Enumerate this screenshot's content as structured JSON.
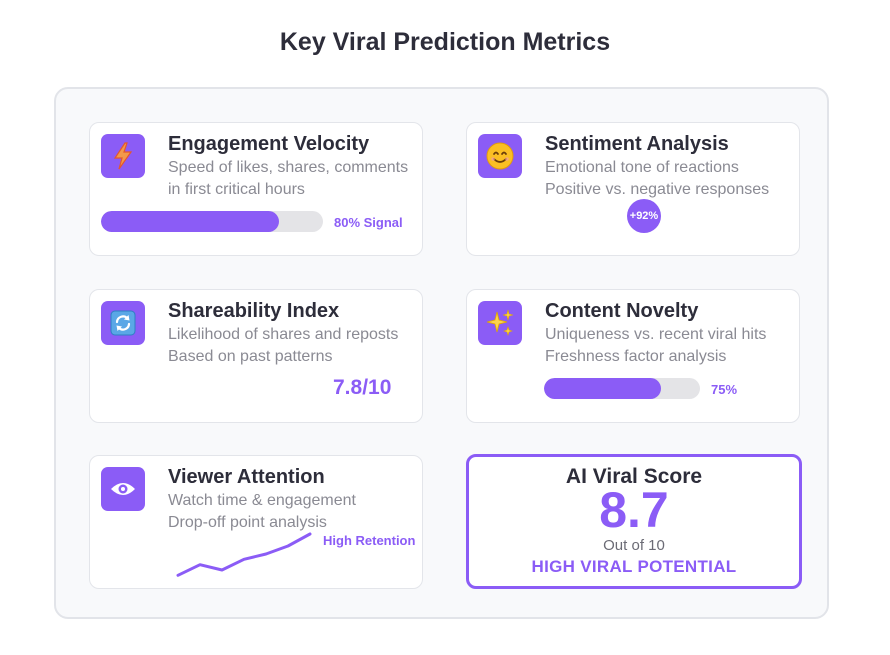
{
  "page": {
    "title": "Key Viral Prediction Metrics"
  },
  "colors": {
    "accent": "#8b5cf6",
    "track": "#e4e4e7",
    "text_dark": "#2d2d3a",
    "text_muted": "#8a8a93"
  },
  "cards": {
    "engagement": {
      "icon": "lightning-bolt-icon",
      "title": "Engagement Velocity",
      "line1": "Speed of likes, shares, comments",
      "line2": "in first critical hours",
      "progress": 0.8,
      "label": "80% Signal"
    },
    "sentiment": {
      "icon": "smiling-face-icon",
      "title": "Sentiment Analysis",
      "line1": "Emotional tone of reactions",
      "line2": "Positive vs. negative responses",
      "badge": "+92%"
    },
    "shareability": {
      "icon": "refresh-arrows-icon",
      "title": "Shareability Index",
      "line1": "Likelihood of shares and reposts",
      "line2": "Based on past patterns",
      "score": "7.8/10"
    },
    "novelty": {
      "icon": "sparkles-icon",
      "title": "Content Novelty",
      "line1": "Uniqueness vs. recent viral hits",
      "line2": "Freshness factor analysis",
      "progress": 0.75,
      "label": "75%"
    },
    "attention": {
      "icon": "eye-icon",
      "title": "Viewer Attention",
      "line1": "Watch time & engagement",
      "line2": "Drop-off point analysis",
      "label": "High Retention",
      "trend": [
        2,
        10,
        6,
        14,
        18,
        24,
        33
      ]
    }
  },
  "ai_score": {
    "title": "AI Viral Score",
    "score": "8.7",
    "out_of": "Out of 10",
    "verdict": "HIGH VIRAL POTENTIAL"
  }
}
